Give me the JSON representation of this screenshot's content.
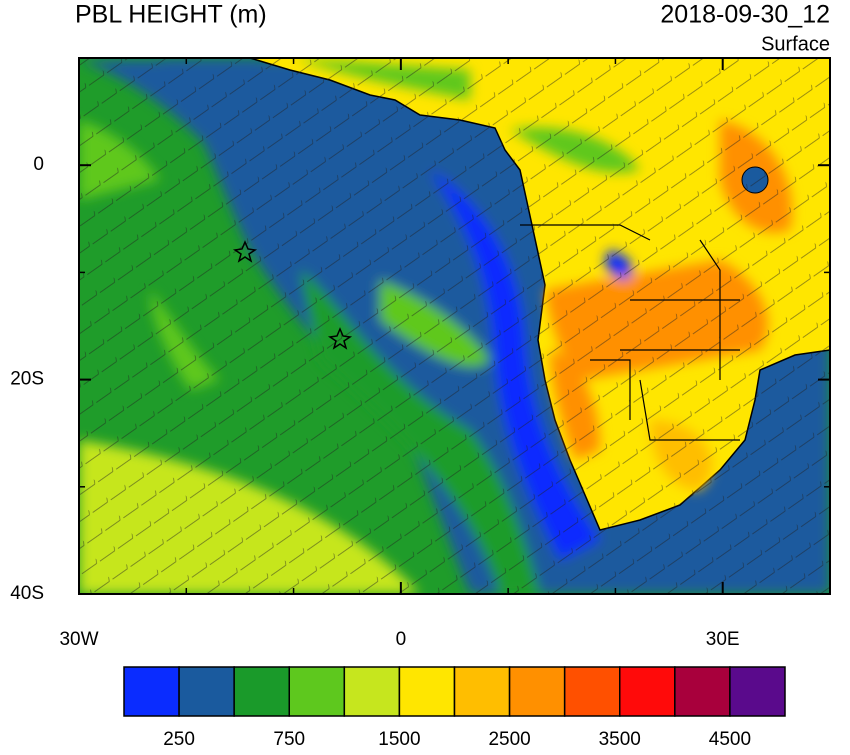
{
  "chart_data": {
    "type": "map",
    "title": "PBL HEIGHT (m)",
    "subtitle": "2018-09-30_12",
    "level": "Surface",
    "xlim": [
      -30,
      40
    ],
    "ylim": [
      -40,
      10
    ],
    "xticks": [
      {
        "value": -30,
        "label": "30W"
      },
      0,
      {
        "value": 30,
        "label": "30E"
      }
    ],
    "yticks": [
      0,
      {
        "value": -20,
        "label": "20S"
      },
      {
        "value": -40,
        "label": "40S"
      }
    ],
    "xminorticks": [
      -20,
      -10,
      10,
      20,
      40
    ],
    "yminorticks": [
      10,
      -10,
      -30
    ],
    "colorbar": {
      "colors": [
        "#0a2cff",
        "#1a5a9e",
        "#1a9a2a",
        "#5ec81e",
        "#c6e61e",
        "#ffe600",
        "#ffbe00",
        "#ff9000",
        "#ff5000",
        "#ff0a0a",
        "#a8003c",
        "#5a0a8c"
      ],
      "ticks": [
        250,
        750,
        1500,
        2500,
        3500,
        4500
      ]
    }
  }
}
